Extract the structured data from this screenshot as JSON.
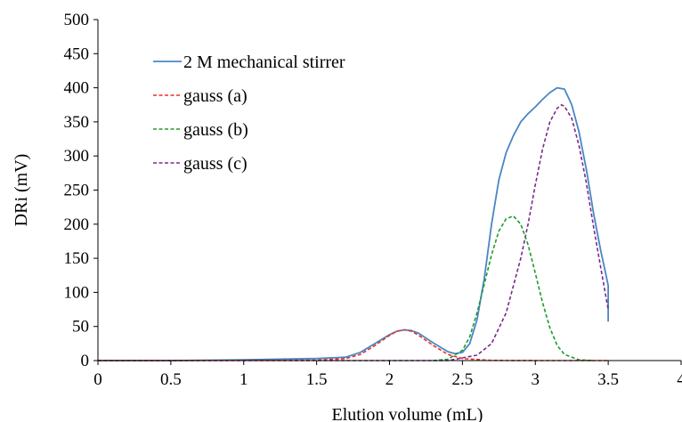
{
  "chart_data": {
    "type": "line",
    "title": "",
    "xlabel": "Elution volume (mL)",
    "ylabel": "DRi (mV)",
    "xlim": [
      0,
      4
    ],
    "ylim": [
      0,
      500
    ],
    "xticks": [
      0,
      0.5,
      1,
      1.5,
      2,
      2.5,
      3,
      3.5,
      4
    ],
    "xtick_labels": [
      "0",
      "0.5",
      "1",
      "1.5",
      "2",
      "2.5",
      "3",
      "3.5",
      "4"
    ],
    "yticks": [
      0,
      50,
      100,
      150,
      200,
      250,
      300,
      350,
      400,
      450,
      500
    ],
    "ytick_labels": [
      "0",
      "50",
      "100",
      "150",
      "200",
      "250",
      "300",
      "350",
      "400",
      "450",
      "500"
    ],
    "grid": false,
    "legend_position": "top-left",
    "series": [
      {
        "name": "2 M mechanical stirrer",
        "color": "#4a86c5",
        "style": "solid",
        "x": [
          0,
          0.5,
          1.0,
          1.5,
          1.7,
          1.8,
          1.9,
          2.0,
          2.05,
          2.1,
          2.15,
          2.2,
          2.3,
          2.4,
          2.45,
          2.5,
          2.55,
          2.6,
          2.65,
          2.7,
          2.75,
          2.8,
          2.85,
          2.9,
          2.95,
          3.0,
          3.05,
          3.1,
          3.15,
          3.2,
          3.25,
          3.3,
          3.35,
          3.4,
          3.45,
          3.48,
          3.5,
          3.5
        ],
        "y": [
          0,
          0,
          1,
          3,
          5,
          12,
          25,
          38,
          43,
          45,
          44,
          40,
          26,
          13,
          10,
          12,
          25,
          60,
          120,
          200,
          265,
          305,
          330,
          350,
          362,
          372,
          383,
          393,
          400,
          398,
          375,
          335,
          280,
          215,
          160,
          130,
          110,
          57
        ]
      },
      {
        "name": "gauss (a)",
        "color": "#e8302a",
        "style": "dashed",
        "x": [
          0,
          1.5,
          1.7,
          1.8,
          1.9,
          2.0,
          2.05,
          2.1,
          2.15,
          2.2,
          2.3,
          2.4,
          2.5,
          2.7,
          3.0,
          3.5
        ],
        "y": [
          0,
          0.5,
          3,
          9,
          22,
          37,
          43,
          45,
          43,
          37,
          22,
          9,
          3,
          0.3,
          0,
          0
        ]
      },
      {
        "name": "gauss (b)",
        "color": "#1e9a2c",
        "style": "dashed",
        "x": [
          2.3,
          2.4,
          2.5,
          2.55,
          2.6,
          2.65,
          2.7,
          2.75,
          2.8,
          2.85,
          2.9,
          2.95,
          3.0,
          3.05,
          3.1,
          3.15,
          3.2,
          3.3,
          3.4
        ],
        "y": [
          0,
          2,
          15,
          35,
          70,
          112,
          155,
          190,
          208,
          212,
          200,
          170,
          128,
          85,
          48,
          22,
          9,
          1,
          0
        ],
        "plot_x_end": 3.4
      },
      {
        "name": "gauss (c)",
        "color": "#7b2a8c",
        "style": "dashed",
        "x": [
          0,
          2.4,
          2.6,
          2.7,
          2.8,
          2.9,
          2.95,
          3.0,
          3.05,
          3.1,
          3.15,
          3.18,
          3.2,
          3.25,
          3.3,
          3.35,
          3.4,
          3.45,
          3.5
        ],
        "y": [
          0,
          0,
          8,
          25,
          70,
          150,
          200,
          258,
          310,
          350,
          370,
          375,
          373,
          355,
          315,
          260,
          195,
          135,
          75
        ]
      }
    ]
  }
}
